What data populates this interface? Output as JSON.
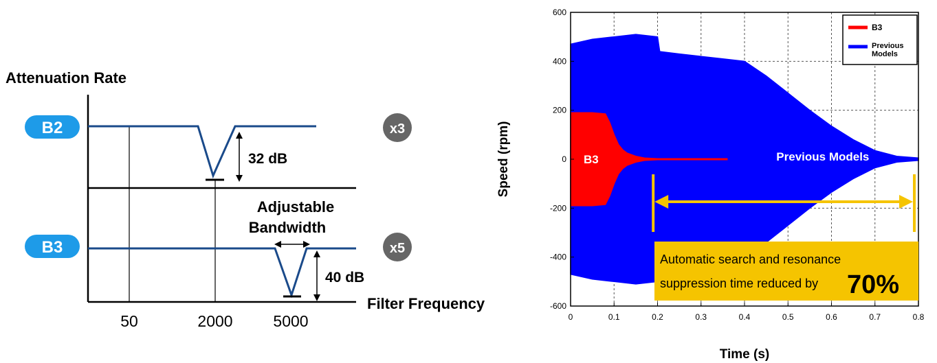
{
  "filter_diagram": {
    "ylabel": "Attenuation Rate",
    "xlabel": "Filter Frequency",
    "ticks": [
      "50",
      "2000",
      "5000"
    ],
    "rows": [
      {
        "badge": "B2",
        "depth_label": "32 dB",
        "multiplier": "x3"
      },
      {
        "badge": "B3",
        "depth_label": "40 dB",
        "multiplier": "x5"
      }
    ],
    "bandwidth_label_line1": "Adjustable",
    "bandwidth_label_line2": "Bandwidth",
    "colors": {
      "badge": "#1e9be8",
      "curve": "#1a4a8a",
      "multiplier_bg": "#666666"
    }
  },
  "chart_data": {
    "type": "area",
    "xlabel": "Time (s)",
    "ylabel": "Speed (rpm)",
    "xlim": [
      0,
      0.8
    ],
    "ylim": [
      -600,
      600
    ],
    "xticks": [
      0,
      0.1,
      0.2,
      0.3,
      0.4,
      0.5,
      0.6,
      0.7,
      0.8
    ],
    "yticks": [
      600,
      400,
      200,
      0,
      -200,
      -400,
      -600
    ],
    "grid": true,
    "legend": "top-right",
    "series": [
      {
        "name": "Previous Models",
        "color": "#0000ff",
        "x": [
          0,
          0.05,
          0.1,
          0.15,
          0.2,
          0.205,
          0.25,
          0.3,
          0.35,
          0.4,
          0.45,
          0.5,
          0.55,
          0.6,
          0.65,
          0.7,
          0.75,
          0.8
        ],
        "upper": [
          470,
          490,
          500,
          510,
          500,
          440,
          430,
          420,
          410,
          400,
          340,
          270,
          200,
          135,
          80,
          35,
          12,
          5
        ],
        "lower": [
          -470,
          -490,
          -500,
          -510,
          -500,
          -440,
          -430,
          -420,
          -410,
          -400,
          -340,
          -270,
          -200,
          -135,
          -80,
          -35,
          -12,
          -5
        ]
      },
      {
        "name": "B3",
        "color": "#ff0000",
        "x": [
          0,
          0.05,
          0.08,
          0.09,
          0.1,
          0.11,
          0.12,
          0.13,
          0.15,
          0.17,
          0.2,
          0.36
        ],
        "upper": [
          190,
          190,
          185,
          150,
          100,
          60,
          38,
          25,
          12,
          5,
          2,
          2
        ],
        "lower": [
          -190,
          -190,
          -185,
          -150,
          -100,
          -60,
          -38,
          -25,
          -12,
          -5,
          -2,
          -2
        ]
      }
    ],
    "annotations": {
      "b3_label": "B3",
      "prev_label": "Previous Models",
      "box_text_line1": "Automatic search and resonance",
      "box_text_line2": "suppression time reduced by",
      "box_highlight": "70%",
      "arrow_from_x": 0.19,
      "arrow_to_x": 0.8,
      "box_color": "#f5c400"
    }
  }
}
